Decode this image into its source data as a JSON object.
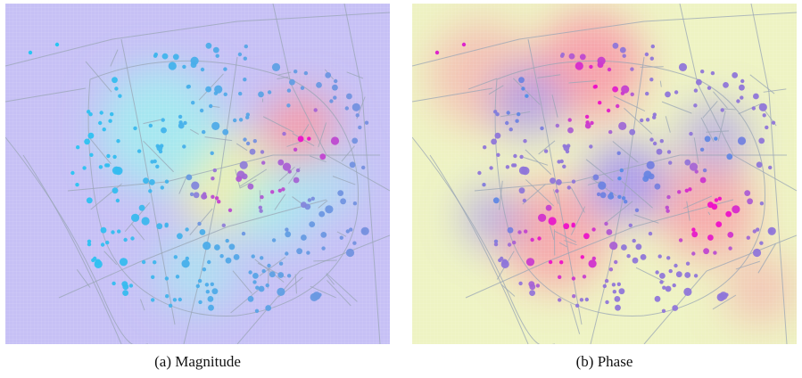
{
  "figure": {
    "panels": [
      {
        "id": "a",
        "caption": "(a) Magnitude",
        "background_color": "#c6c0f5",
        "node_palette": {
          "low": "#1ccdf5",
          "mid": "#8f7fd8",
          "high": "#ee10c8"
        }
      },
      {
        "id": "b",
        "caption": "(b) Phase",
        "background_color": "#eef3c3",
        "node_palette": {
          "low": "#2f9aef",
          "mid": "#9a72d6",
          "high": "#ee10c8"
        }
      }
    ],
    "colors": {
      "street_lines": "#9aa6b6",
      "heat_low": "#9d8cf2",
      "heat_mid_cyan": "#9ff0ef",
      "heat_mid_yellow": "#f7f2a2",
      "heat_high": "#f79aa8"
    }
  }
}
